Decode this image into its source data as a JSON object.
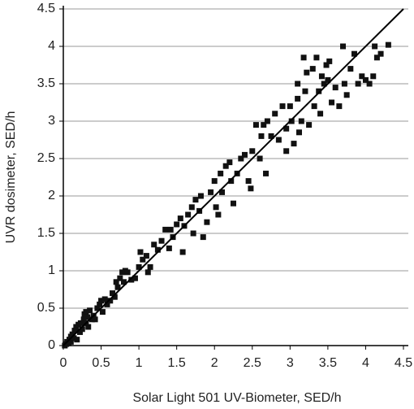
{
  "chart_data": {
    "type": "scatter",
    "x_label": "Solar Light 501 UV-Biometer, SED/h",
    "y_label": "UVR dosimeter, SED/h",
    "xlim": [
      0,
      4.5
    ],
    "ylim": [
      0,
      4.5
    ],
    "xticks": [
      0,
      0.5,
      1,
      1.5,
      2,
      2.5,
      3,
      3.5,
      4,
      4.5
    ],
    "yticks": [
      0,
      0.5,
      1,
      1.5,
      2,
      2.5,
      3,
      3.5,
      4,
      4.5
    ],
    "grid": true,
    "points": {
      "color": "#111111",
      "x": [
        0.02,
        0.04,
        0.05,
        0.07,
        0.08,
        0.1,
        0.1,
        0.12,
        0.14,
        0.15,
        0.17,
        0.18,
        0.2,
        0.22,
        0.23,
        0.25,
        0.27,
        0.28,
        0.3,
        0.3,
        0.32,
        0.35,
        0.33,
        0.38,
        0.4,
        0.42,
        0.45,
        0.48,
        0.5,
        0.52,
        0.55,
        0.58,
        0.62,
        0.65,
        0.68,
        0.7,
        0.72,
        0.75,
        0.78,
        0.8,
        0.82,
        0.85,
        0.9,
        0.95,
        1.0,
        1.02,
        1.05,
        1.1,
        1.12,
        1.15,
        1.2,
        1.25,
        1.3,
        1.35,
        1.4,
        1.42,
        1.45,
        1.5,
        1.55,
        1.6,
        1.58,
        1.65,
        1.7,
        1.72,
        1.75,
        1.8,
        1.82,
        1.85,
        1.9,
        1.95,
        2.0,
        2.02,
        2.05,
        2.08,
        2.1,
        2.15,
        2.2,
        2.22,
        2.25,
        2.3,
        2.35,
        2.4,
        2.45,
        2.48,
        2.5,
        2.55,
        2.6,
        2.62,
        2.65,
        2.68,
        2.7,
        2.75,
        2.8,
        2.85,
        2.9,
        2.95,
        2.95,
        3.0,
        3.02,
        3.05,
        3.1,
        3.1,
        3.12,
        3.15,
        3.18,
        3.2,
        3.22,
        3.25,
        3.3,
        3.32,
        3.35,
        3.38,
        3.4,
        3.42,
        3.45,
        3.48,
        3.5,
        3.52,
        3.55,
        3.6,
        3.65,
        3.7,
        3.72,
        3.75,
        3.8,
        3.85,
        3.9,
        3.95,
        4.0,
        4.05,
        4.1,
        4.12,
        4.15,
        4.2,
        4.3
      ],
      "y": [
        0.0,
        0.02,
        0.05,
        0.03,
        0.08,
        0.05,
        0.12,
        0.15,
        0.1,
        0.2,
        0.25,
        0.08,
        0.28,
        0.18,
        0.3,
        0.22,
        0.35,
        0.42,
        0.45,
        0.3,
        0.38,
        0.47,
        0.25,
        0.35,
        0.4,
        0.35,
        0.5,
        0.55,
        0.6,
        0.45,
        0.62,
        0.55,
        0.6,
        0.7,
        0.65,
        0.85,
        0.78,
        0.9,
        0.98,
        0.85,
        1.0,
        0.98,
        0.88,
        0.9,
        1.05,
        1.25,
        1.15,
        1.2,
        0.98,
        1.05,
        1.35,
        1.28,
        1.4,
        1.55,
        1.3,
        1.55,
        1.45,
        1.62,
        1.7,
        1.6,
        1.25,
        1.75,
        1.85,
        1.5,
        1.95,
        1.8,
        2.0,
        1.45,
        1.65,
        2.05,
        2.2,
        1.85,
        1.75,
        2.3,
        2.05,
        2.4,
        2.45,
        2.2,
        1.9,
        2.3,
        2.5,
        2.55,
        2.2,
        2.1,
        2.6,
        2.95,
        2.5,
        2.8,
        2.95,
        2.3,
        3.0,
        2.8,
        3.1,
        2.75,
        3.2,
        2.6,
        2.9,
        3.2,
        3.0,
        2.7,
        3.3,
        3.5,
        2.85,
        3.0,
        3.85,
        3.4,
        3.65,
        2.95,
        3.7,
        3.2,
        3.85,
        3.4,
        3.1,
        3.6,
        3.5,
        3.75,
        3.55,
        3.8,
        3.25,
        3.45,
        3.2,
        4.0,
        3.5,
        3.35,
        3.7,
        3.9,
        3.5,
        3.6,
        3.55,
        3.5,
        3.6,
        4.0,
        3.85,
        3.9,
        4.02
      ]
    },
    "fit_line": {
      "color": "#000000",
      "x": [
        0,
        4.5
      ],
      "y": [
        0,
        4.5
      ]
    }
  }
}
